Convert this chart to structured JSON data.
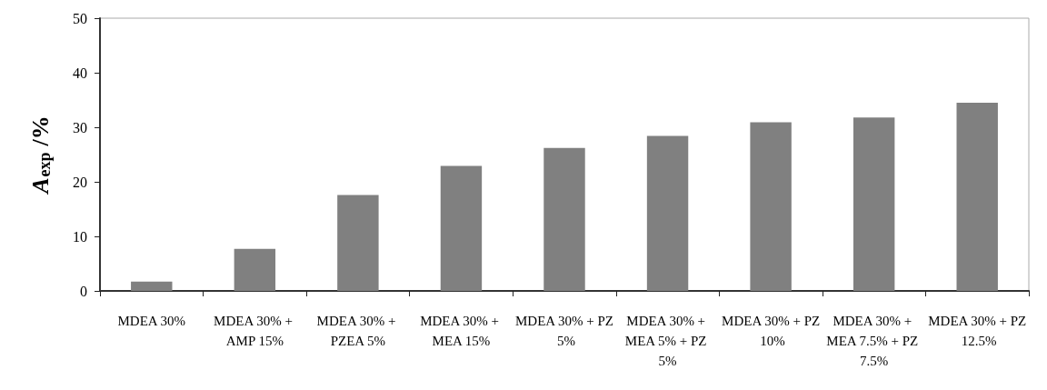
{
  "chart_data": {
    "type": "bar",
    "ylabel": "A$_{exp}$/%",
    "categories": [
      "MDEA 30%",
      "MDEA 30% + AMP 15%",
      "MDEA 30% + PZEA 5%",
      "MDEA 30% + MEA 15%",
      "MDEA 30% + PZ 5%",
      "MDEA 30% + MEA 5% + PZ 5%",
      "MDEA 30% + PZ 10%",
      "MDEA 30% + MEA 7.5% + PZ 7.5%",
      "MDEA 30% + PZ 12.5%"
    ],
    "values": [
      1.7,
      7.7,
      17.6,
      22.9,
      26.2,
      28.4,
      30.9,
      31.8,
      34.5
    ],
    "color": "#808080",
    "ylim": [
      0,
      50
    ],
    "yticks": [
      0,
      10,
      20,
      30,
      40,
      50
    ],
    "grid": false
  }
}
